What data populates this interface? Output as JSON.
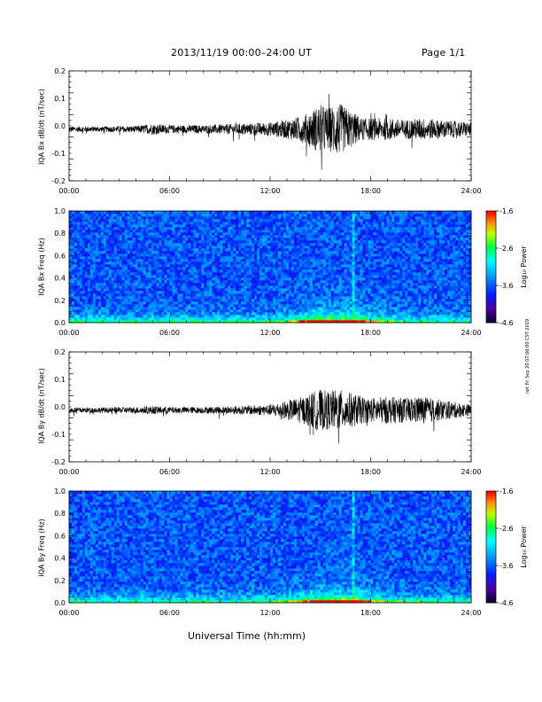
{
  "header": {
    "title": "2013/11/19   00:00–24:00 UT",
    "page_label": "Page 1/1"
  },
  "footer": {
    "xlabel": "Universal Time (hh:mm)",
    "stamp": "rwt Fri Sep 20 07:06:00 CST 2019"
  },
  "colorbar": {
    "ticks": [
      "-1.6",
      "-2.6",
      "-3.6",
      "-4.6"
    ],
    "label": "Log₁₀ Power"
  },
  "chart_data": [
    {
      "type": "line",
      "ylabel": "IQA Bx dB/dt (nT/sec)",
      "x_ticks": [
        "00:00",
        "06:00",
        "12:00",
        "18:00",
        "24:00"
      ],
      "xlim_hours": [
        0,
        24
      ],
      "y_ticks": [
        "0.2",
        "0.1",
        "0.0",
        "-0.1",
        "-0.2"
      ],
      "ylim": [
        -0.2,
        0.2
      ],
      "series": [
        {
          "x_hours": [
            0,
            2,
            4,
            5,
            6,
            8,
            10,
            12,
            13,
            14,
            14.5,
            15,
            15.5,
            16,
            16.5,
            17,
            17.5,
            18,
            19,
            20,
            21,
            22,
            23,
            24
          ],
          "amplitude": [
            0.01,
            0.01,
            0.012,
            0.02,
            0.015,
            0.015,
            0.02,
            0.025,
            0.035,
            0.05,
            0.07,
            0.09,
            0.08,
            0.1,
            0.08,
            0.06,
            0.04,
            0.04,
            0.04,
            0.035,
            0.04,
            0.035,
            0.03,
            0.025
          ]
        }
      ],
      "color": "#000000",
      "grid": false
    },
    {
      "type": "heatmap",
      "ylabel": "IQA Bx Freq (Hz)",
      "x_ticks": [
        "00:00",
        "06:00",
        "12:00",
        "18:00",
        "24:00"
      ],
      "xlim_hours": [
        0,
        24
      ],
      "y_ticks": [
        "1.0",
        "0.8",
        "0.6",
        "0.4",
        "0.2",
        "0.0"
      ],
      "ylim": [
        0,
        1.0
      ],
      "zlim": [
        -4.6,
        -1.6
      ],
      "zlabel": "Log₁₀ Power"
    },
    {
      "type": "line",
      "ylabel": "IQA By dB/dt (nT/sec)",
      "x_ticks": [
        "00:00",
        "06:00",
        "12:00",
        "18:00",
        "24:00"
      ],
      "xlim_hours": [
        0,
        24
      ],
      "y_ticks": [
        "0.2",
        "0.1",
        "0.0",
        "-0.1",
        "-0.2"
      ],
      "ylim": [
        -0.2,
        0.2
      ],
      "series": [
        {
          "x_hours": [
            0,
            2,
            4,
            5,
            6,
            8,
            10,
            12,
            13,
            14,
            14.5,
            15,
            15.5,
            16,
            16.5,
            17,
            17.5,
            18,
            19,
            20,
            21,
            22,
            23,
            24
          ],
          "amplitude": [
            0.01,
            0.01,
            0.012,
            0.015,
            0.012,
            0.012,
            0.015,
            0.02,
            0.035,
            0.05,
            0.065,
            0.075,
            0.07,
            0.075,
            0.07,
            0.06,
            0.05,
            0.045,
            0.05,
            0.045,
            0.05,
            0.04,
            0.03,
            0.02
          ]
        }
      ],
      "color": "#000000",
      "grid": false
    },
    {
      "type": "heatmap",
      "ylabel": "IQA By Freq (Hz)",
      "x_ticks": [
        "00:00",
        "06:00",
        "12:00",
        "18:00",
        "24:00"
      ],
      "xlim_hours": [
        0,
        24
      ],
      "y_ticks": [
        "1.0",
        "0.8",
        "0.6",
        "0.4",
        "0.2",
        "0.0"
      ],
      "ylim": [
        0,
        1.0
      ],
      "zlim": [
        -4.6,
        -1.6
      ],
      "zlabel": "Log₁₀ Power"
    }
  ]
}
